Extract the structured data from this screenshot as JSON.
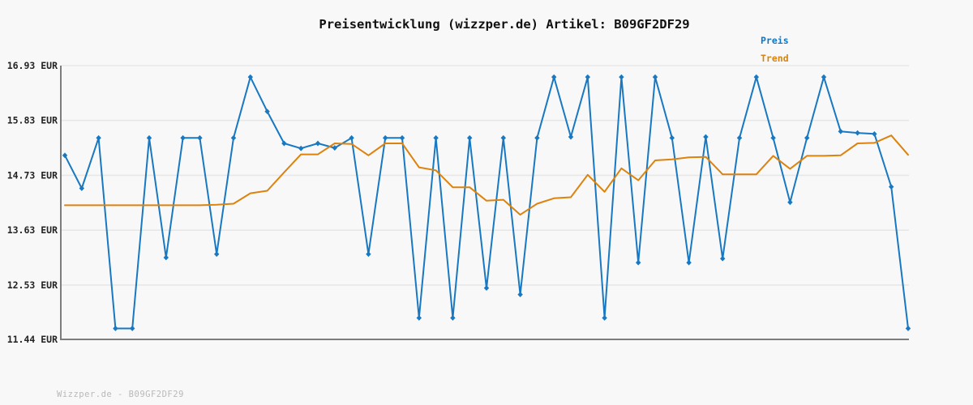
{
  "title": "Preisentwicklung (wizzper.de) Artikel: B09GF2DF29",
  "legend": {
    "preis_label": "Preis",
    "trend_label": "Trend"
  },
  "footer": "Wizzper.de - B09GF2DF29",
  "colors": {
    "preis_line": "#1878c2",
    "trend_line": "#dd830d",
    "grid": "#e7e7e7",
    "axis": "#7d7d7d",
    "background": "#f8f8f8",
    "title_text": "#111111",
    "tick_text": "#222222",
    "footer_text": "#b9b9b9"
  },
  "chart_data": {
    "type": "line",
    "title": "Preisentwicklung (wizzper.de) Artikel: B09GF2DF29",
    "ylabel": "EUR",
    "ylim": [
      11.44,
      16.93
    ],
    "y_tick_values": [
      16.93,
      15.83,
      14.73,
      13.63,
      12.53,
      11.44
    ],
    "y_tick_labels": [
      "16.93 EUR",
      "15.83 EUR",
      "14.73 EUR",
      "13.63 EUR",
      "12.53 EUR",
      "11.44 EUR"
    ],
    "x_tick_labels": [],
    "grid": "horizontal",
    "legend_position": "top-right",
    "series": [
      {
        "name": "Preis",
        "color": "#1878c2",
        "markers": true,
        "values": [
          15.13,
          14.47,
          15.48,
          11.66,
          11.66,
          15.48,
          13.08,
          15.48,
          15.48,
          13.15,
          15.48,
          16.7,
          16.01,
          15.37,
          15.27,
          15.37,
          15.28,
          15.48,
          13.15,
          15.48,
          15.48,
          11.87,
          15.48,
          11.87,
          15.48,
          12.47,
          15.48,
          12.34,
          15.48,
          16.7,
          15.5,
          16.7,
          11.87,
          16.7,
          12.98,
          16.7,
          15.48,
          12.98,
          15.5,
          13.06,
          15.48,
          16.7,
          15.48,
          14.19,
          15.48,
          16.7,
          15.61,
          15.58,
          15.56,
          14.5,
          11.66
        ]
      },
      {
        "name": "Trend",
        "color": "#dd830d",
        "markers": false,
        "values": [
          14.13,
          14.13,
          14.13,
          14.13,
          14.13,
          14.13,
          14.13,
          14.13,
          14.13,
          14.14,
          14.16,
          14.37,
          14.42,
          14.79,
          15.15,
          15.15,
          15.37,
          15.36,
          15.13,
          15.37,
          15.37,
          14.89,
          14.83,
          14.49,
          14.49,
          14.22,
          14.24,
          13.94,
          14.16,
          14.27,
          14.29,
          14.74,
          14.4,
          14.87,
          14.63,
          15.03,
          15.05,
          15.09,
          15.1,
          14.75,
          14.75,
          14.75,
          15.12,
          14.86,
          15.12,
          15.12,
          15.13,
          15.37,
          15.38,
          15.53,
          15.14
        ]
      }
    ]
  }
}
